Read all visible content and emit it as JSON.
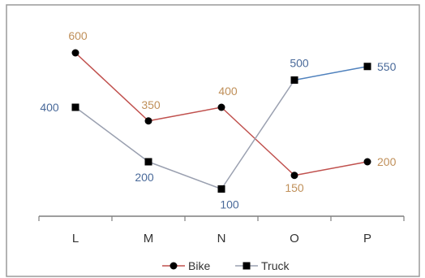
{
  "chart_data": {
    "type": "line",
    "categories": [
      "L",
      "M",
      "N",
      "O",
      "P"
    ],
    "series": [
      {
        "name": "Bike",
        "values": [
          600,
          350,
          400,
          150,
          200
        ],
        "labels": [
          "600",
          "350",
          "400",
          "150",
          "200"
        ],
        "line_colors": [
          "#c0504d",
          "#c0504d",
          "#c0504d",
          "#c0504d"
        ],
        "label_color": "#c0905a",
        "marker": "circle",
        "marker_color": "#000000"
      },
      {
        "name": "Truck",
        "values": [
          400,
          200,
          100,
          500,
          550
        ],
        "labels": [
          "400",
          "200",
          "100",
          "500",
          "550"
        ],
        "line_colors": [
          "#9aa0b0",
          "#9aa0b0",
          "#9aa0b0",
          "#4f81bd"
        ],
        "label_color": "#4a6a9a",
        "marker": "square",
        "marker_color": "#000000"
      }
    ],
    "ylim": [
      0,
      700
    ],
    "grid": false,
    "legend": "bottom"
  }
}
